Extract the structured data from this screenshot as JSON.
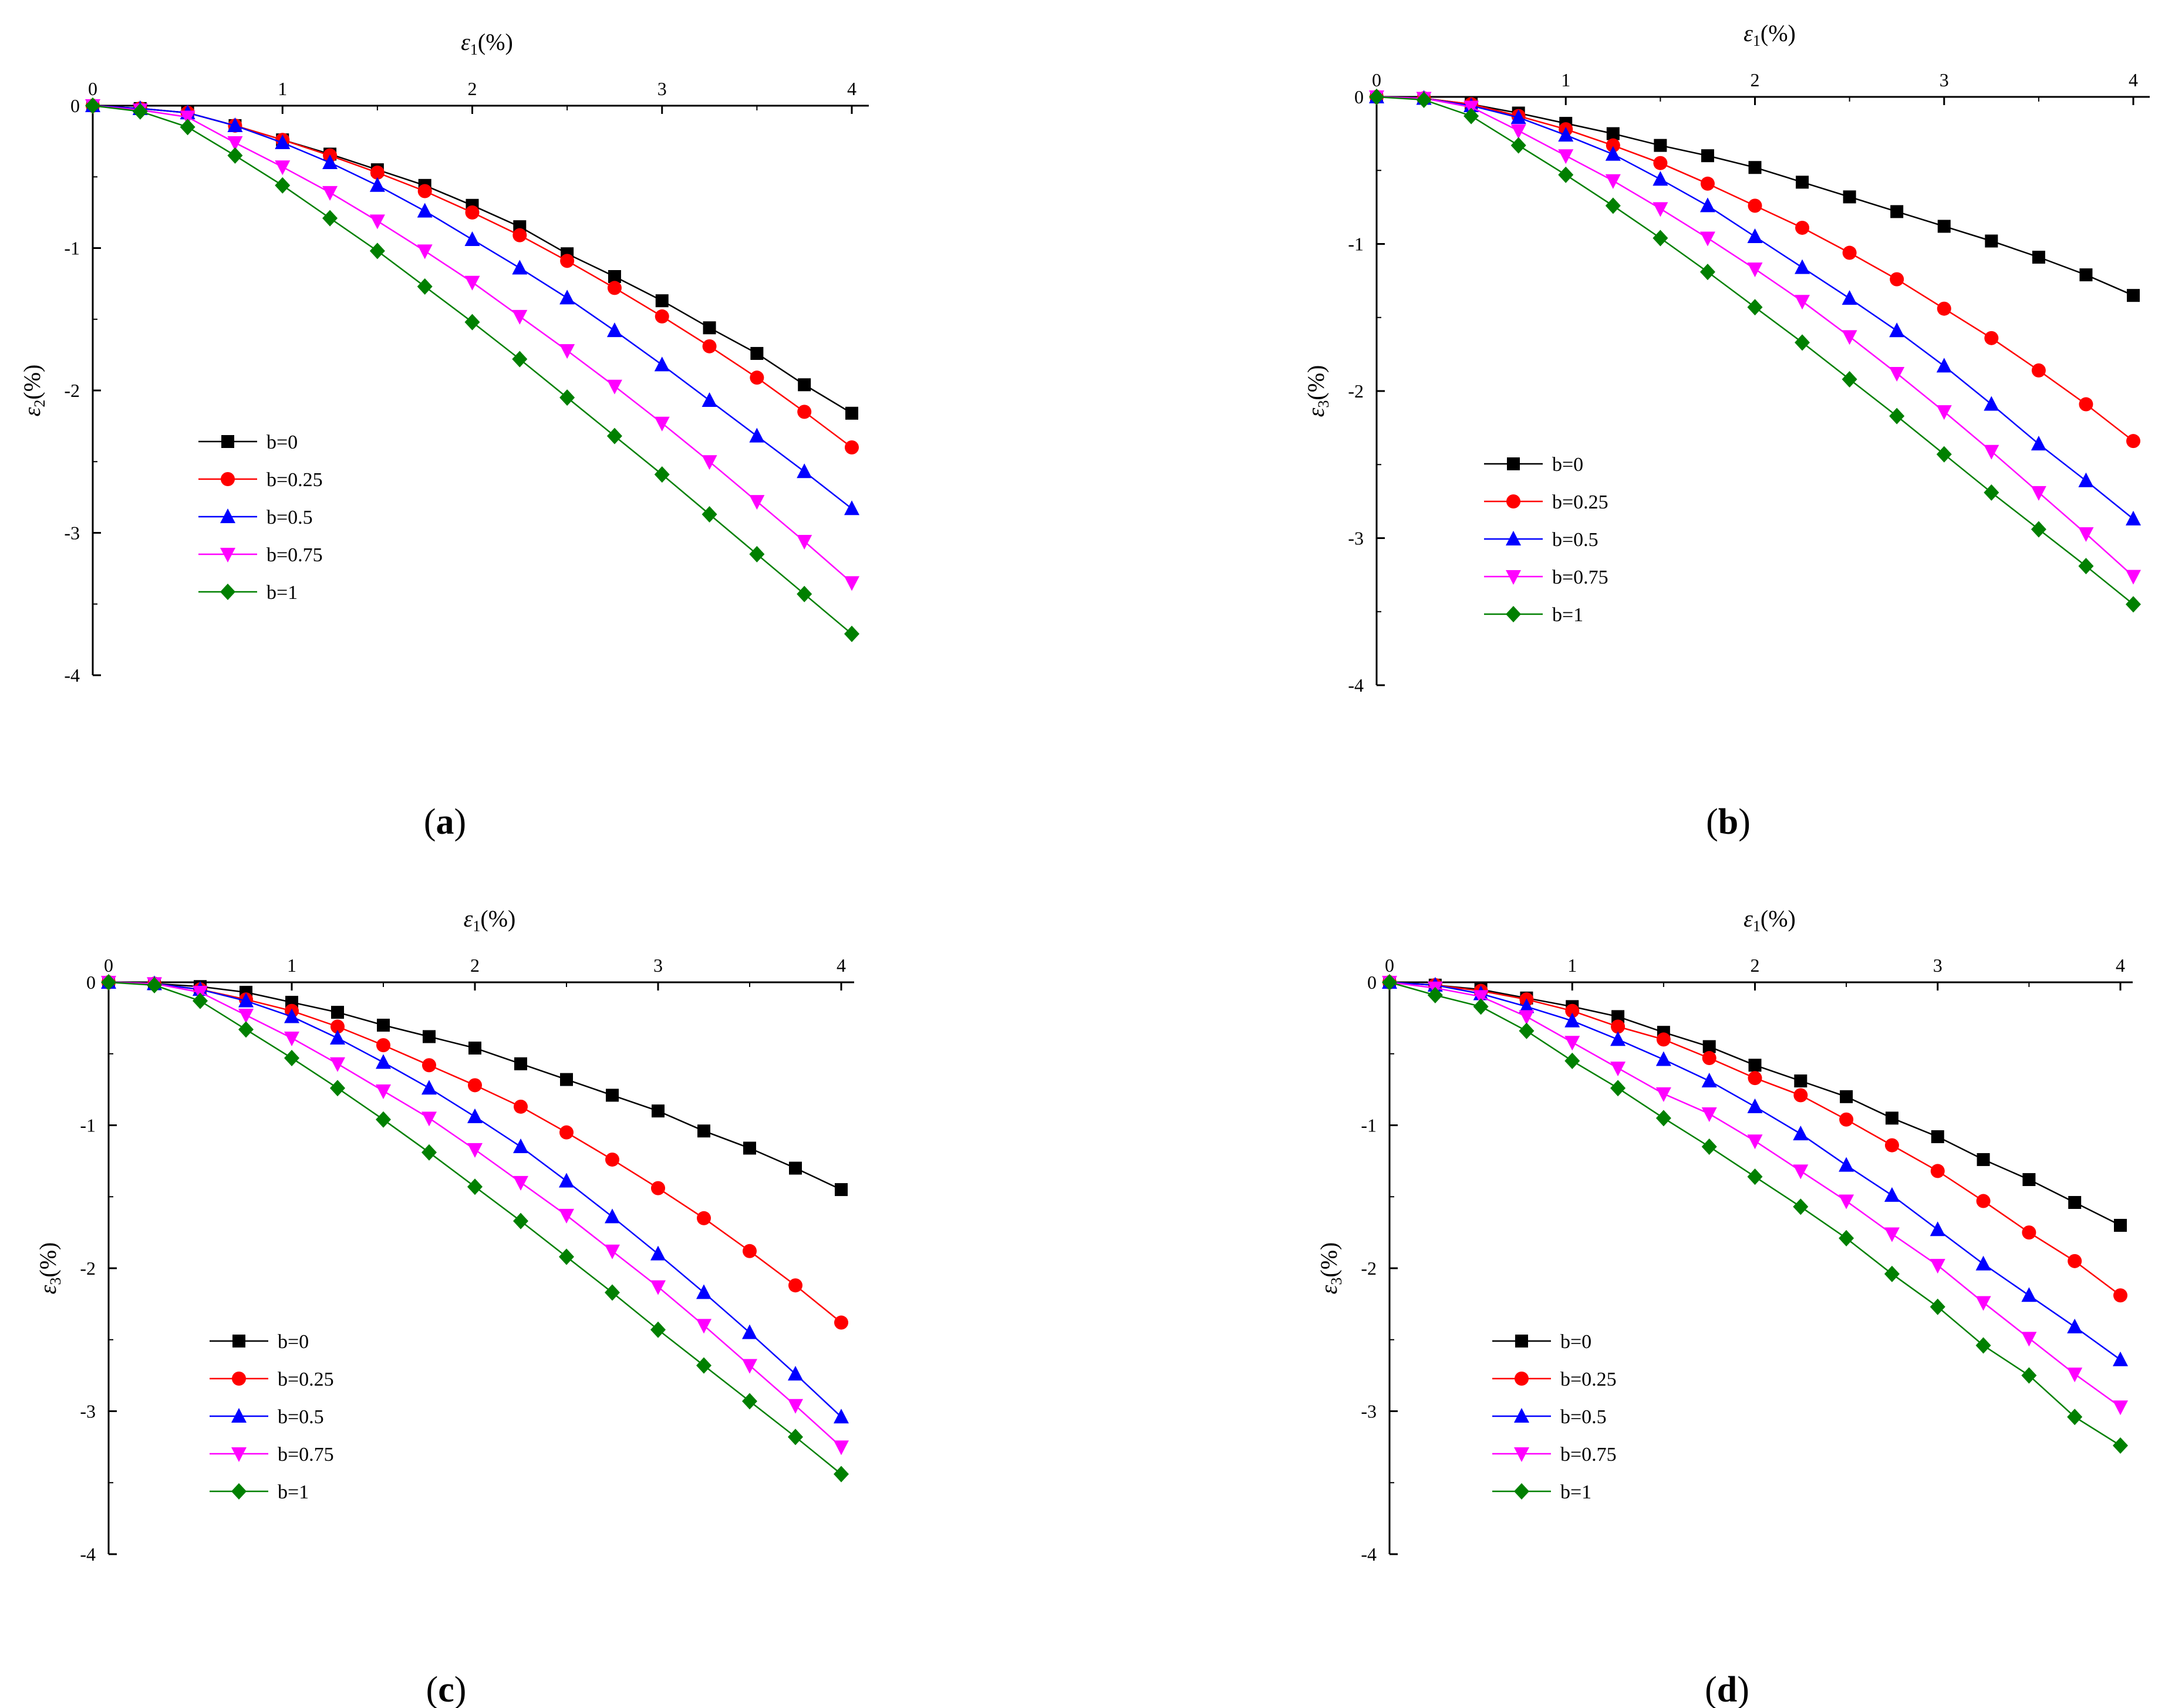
{
  "figure": {
    "colors": {
      "b=0": "#000000",
      "b=0.25": "#ff0000",
      "b=0.5": "#0000ff",
      "b=0.75": "#ff00ff",
      "b=1": "#008000"
    },
    "markers": {
      "b=0": "square",
      "b=0.25": "circle",
      "b=0.5": "triangle-up",
      "b=0.75": "triangle-down",
      "b=1": "diamond"
    }
  },
  "chart_data": [
    {
      "id": "a",
      "caption": {
        "open": "(",
        "letter": "a",
        "close": ")"
      },
      "type": "line",
      "xlabel": {
        "symbol": "ε",
        "sub": "1",
        "unit": "(%)"
      },
      "ylabel": {
        "symbol": "ε",
        "sub": "2",
        "unit": "(%)"
      },
      "xlim": [
        0,
        4
      ],
      "ylim": [
        -4,
        0
      ],
      "xticks": [
        "0",
        "1",
        "2",
        "3",
        "4"
      ],
      "yticks": [
        "0",
        "-1",
        "-2",
        "-3",
        "-4"
      ],
      "grid": false,
      "legend": "lower-left",
      "x": [
        0,
        0.25,
        0.5,
        0.75,
        1,
        1.25,
        1.5,
        1.75,
        2,
        2.25,
        2.5,
        2.75,
        3,
        3.25,
        3.5,
        3.75,
        4
      ],
      "series": [
        {
          "name": "b=0",
          "values": [
            0,
            -0.02,
            -0.05,
            -0.14,
            -0.24,
            -0.34,
            -0.45,
            -0.56,
            -0.7,
            -0.85,
            -1.04,
            -1.2,
            -1.37,
            -1.56,
            -1.74,
            -1.96,
            -2.16
          ]
        },
        {
          "name": "b=0.25",
          "values": [
            0,
            -0.02,
            -0.05,
            -0.14,
            -0.24,
            -0.35,
            -0.47,
            -0.6,
            -0.75,
            -0.91,
            -1.09,
            -1.28,
            -1.48,
            -1.69,
            -1.91,
            -2.15,
            -2.4
          ]
        },
        {
          "name": "b=0.5",
          "values": [
            0,
            -0.02,
            -0.05,
            -0.14,
            -0.26,
            -0.4,
            -0.56,
            -0.74,
            -0.94,
            -1.14,
            -1.35,
            -1.58,
            -1.82,
            -2.07,
            -2.32,
            -2.57,
            -2.83
          ]
        },
        {
          "name": "b=0.75",
          "values": [
            0,
            -0.03,
            -0.08,
            -0.26,
            -0.43,
            -0.61,
            -0.81,
            -1.02,
            -1.24,
            -1.48,
            -1.72,
            -1.97,
            -2.23,
            -2.5,
            -2.78,
            -3.06,
            -3.35
          ]
        },
        {
          "name": "b=1",
          "values": [
            0,
            -0.04,
            -0.15,
            -0.35,
            -0.56,
            -0.79,
            -1.02,
            -1.27,
            -1.52,
            -1.78,
            -2.05,
            -2.32,
            -2.59,
            -2.87,
            -3.15,
            -3.43,
            -3.71
          ]
        }
      ]
    },
    {
      "id": "b",
      "caption": {
        "open": "(",
        "letter": "b",
        "close": ")"
      },
      "type": "line",
      "xlabel": {
        "symbol": "ε",
        "sub": "1",
        "unit": "(%)"
      },
      "ylabel": {
        "symbol": "ε",
        "sub": "3",
        "unit": "(%)"
      },
      "xlim": [
        0,
        4
      ],
      "ylim": [
        -4,
        0
      ],
      "xticks": [
        "0",
        "1",
        "2",
        "3",
        "4"
      ],
      "yticks": [
        "0",
        "-1",
        "-2",
        "-3",
        "-4"
      ],
      "grid": false,
      "legend": "lower-left",
      "x": [
        0,
        0.25,
        0.5,
        0.75,
        1,
        1.25,
        1.5,
        1.75,
        2,
        2.25,
        2.5,
        2.75,
        3,
        3.25,
        3.5,
        3.75,
        4
      ],
      "series": [
        {
          "name": "b=0",
          "values": [
            0,
            -0.01,
            -0.05,
            -0.11,
            -0.18,
            -0.25,
            -0.33,
            -0.4,
            -0.48,
            -0.58,
            -0.68,
            -0.78,
            -0.88,
            -0.98,
            -1.09,
            -1.21,
            -1.35
          ]
        },
        {
          "name": "b=0.25",
          "values": [
            0,
            -0.01,
            -0.05,
            -0.13,
            -0.22,
            -0.33,
            -0.45,
            -0.59,
            -0.74,
            -0.89,
            -1.06,
            -1.24,
            -1.44,
            -1.64,
            -1.86,
            -2.09,
            -2.34
          ]
        },
        {
          "name": "b=0.5",
          "values": [
            0,
            -0.01,
            -0.06,
            -0.14,
            -0.26,
            -0.39,
            -0.56,
            -0.74,
            -0.95,
            -1.16,
            -1.37,
            -1.59,
            -1.83,
            -2.09,
            -2.36,
            -2.61,
            -2.87
          ]
        },
        {
          "name": "b=0.75",
          "values": [
            0,
            -0.01,
            -0.07,
            -0.23,
            -0.4,
            -0.57,
            -0.76,
            -0.96,
            -1.17,
            -1.39,
            -1.63,
            -1.88,
            -2.14,
            -2.41,
            -2.69,
            -2.97,
            -3.26
          ]
        },
        {
          "name": "b=1",
          "values": [
            0,
            -0.02,
            -0.13,
            -0.33,
            -0.53,
            -0.74,
            -0.96,
            -1.19,
            -1.43,
            -1.67,
            -1.92,
            -2.17,
            -2.43,
            -2.69,
            -2.94,
            -3.19,
            -3.45
          ]
        }
      ]
    },
    {
      "id": "c",
      "caption": {
        "open": "(",
        "letter": "c",
        "close": ")"
      },
      "type": "line",
      "xlabel": {
        "symbol": "ε",
        "sub": "1",
        "unit": "(%)"
      },
      "ylabel": {
        "symbol": "ε",
        "sub": "3",
        "unit": "(%)"
      },
      "xlim": [
        0,
        4
      ],
      "ylim": [
        -4,
        0
      ],
      "xticks": [
        "0",
        "1",
        "2",
        "3",
        "4"
      ],
      "yticks": [
        "0",
        "-1",
        "-2",
        "-3",
        "-4"
      ],
      "grid": false,
      "legend": "lower-left",
      "x": [
        0,
        0.25,
        0.5,
        0.75,
        1,
        1.25,
        1.5,
        1.75,
        2,
        2.25,
        2.5,
        2.75,
        3,
        3.25,
        3.5,
        3.75,
        4
      ],
      "series": [
        {
          "name": "b=0",
          "values": [
            0,
            -0.01,
            -0.03,
            -0.07,
            -0.14,
            -0.21,
            -0.3,
            -0.38,
            -0.46,
            -0.57,
            -0.68,
            -0.79,
            -0.9,
            -1.04,
            -1.16,
            -1.3,
            -1.45
          ]
        },
        {
          "name": "b=0.25",
          "values": [
            0,
            -0.01,
            -0.05,
            -0.12,
            -0.2,
            -0.31,
            -0.44,
            -0.58,
            -0.72,
            -0.87,
            -1.05,
            -1.24,
            -1.44,
            -1.65,
            -1.88,
            -2.12,
            -2.38
          ]
        },
        {
          "name": "b=0.5",
          "values": [
            0,
            -0.01,
            -0.05,
            -0.13,
            -0.24,
            -0.39,
            -0.56,
            -0.74,
            -0.94,
            -1.15,
            -1.39,
            -1.64,
            -1.9,
            -2.17,
            -2.45,
            -2.74,
            -3.04
          ]
        },
        {
          "name": "b=0.75",
          "values": [
            0,
            -0.01,
            -0.07,
            -0.23,
            -0.39,
            -0.57,
            -0.76,
            -0.95,
            -1.17,
            -1.4,
            -1.63,
            -1.88,
            -2.13,
            -2.4,
            -2.68,
            -2.96,
            -3.25
          ]
        },
        {
          "name": "b=1",
          "values": [
            0,
            -0.02,
            -0.13,
            -0.33,
            -0.53,
            -0.74,
            -0.96,
            -1.19,
            -1.43,
            -1.67,
            -1.92,
            -2.17,
            -2.43,
            -2.68,
            -2.93,
            -3.18,
            -3.44
          ]
        }
      ]
    },
    {
      "id": "d",
      "caption": {
        "open": "(",
        "letter": "d",
        "close": ")"
      },
      "type": "line",
      "xlabel": {
        "symbol": "ε",
        "sub": "1",
        "unit": "(%)"
      },
      "ylabel": {
        "symbol": "ε",
        "sub": "3",
        "unit": "(%)"
      },
      "xlim": [
        0,
        4
      ],
      "ylim": [
        -4,
        0
      ],
      "xticks": [
        "0",
        "1",
        "2",
        "3",
        "4"
      ],
      "yticks": [
        "0",
        "-1",
        "-2",
        "-3",
        "-4"
      ],
      "grid": false,
      "legend": "lower-left",
      "x": [
        0,
        0.25,
        0.5,
        0.75,
        1,
        1.25,
        1.5,
        1.75,
        2,
        2.25,
        2.5,
        2.75,
        3,
        3.25,
        3.5,
        3.75,
        4
      ],
      "series": [
        {
          "name": "b=0",
          "values": [
            0,
            -0.02,
            -0.05,
            -0.11,
            -0.17,
            -0.24,
            -0.35,
            -0.45,
            -0.58,
            -0.69,
            -0.8,
            -0.95,
            -1.08,
            -1.24,
            -1.38,
            -1.54,
            -1.7
          ]
        },
        {
          "name": "b=0.25",
          "values": [
            0,
            -0.02,
            -0.06,
            -0.12,
            -0.2,
            -0.31,
            -0.4,
            -0.53,
            -0.67,
            -0.79,
            -0.96,
            -1.14,
            -1.32,
            -1.53,
            -1.75,
            -1.95,
            -2.19
          ]
        },
        {
          "name": "b=0.5",
          "values": [
            0,
            -0.02,
            -0.08,
            -0.17,
            -0.27,
            -0.4,
            -0.54,
            -0.69,
            -0.87,
            -1.06,
            -1.28,
            -1.49,
            -1.73,
            -1.97,
            -2.19,
            -2.41,
            -2.64
          ]
        },
        {
          "name": "b=0.75",
          "values": [
            0,
            -0.04,
            -0.1,
            -0.24,
            -0.42,
            -0.6,
            -0.78,
            -0.92,
            -1.11,
            -1.32,
            -1.53,
            -1.76,
            -1.98,
            -2.24,
            -2.49,
            -2.74,
            -2.97
          ]
        },
        {
          "name": "b=1",
          "values": [
            0,
            -0.09,
            -0.17,
            -0.34,
            -0.55,
            -0.74,
            -0.95,
            -1.15,
            -1.36,
            -1.57,
            -1.79,
            -2.04,
            -2.27,
            -2.54,
            -2.75,
            -3.04,
            -3.24
          ]
        }
      ]
    }
  ]
}
